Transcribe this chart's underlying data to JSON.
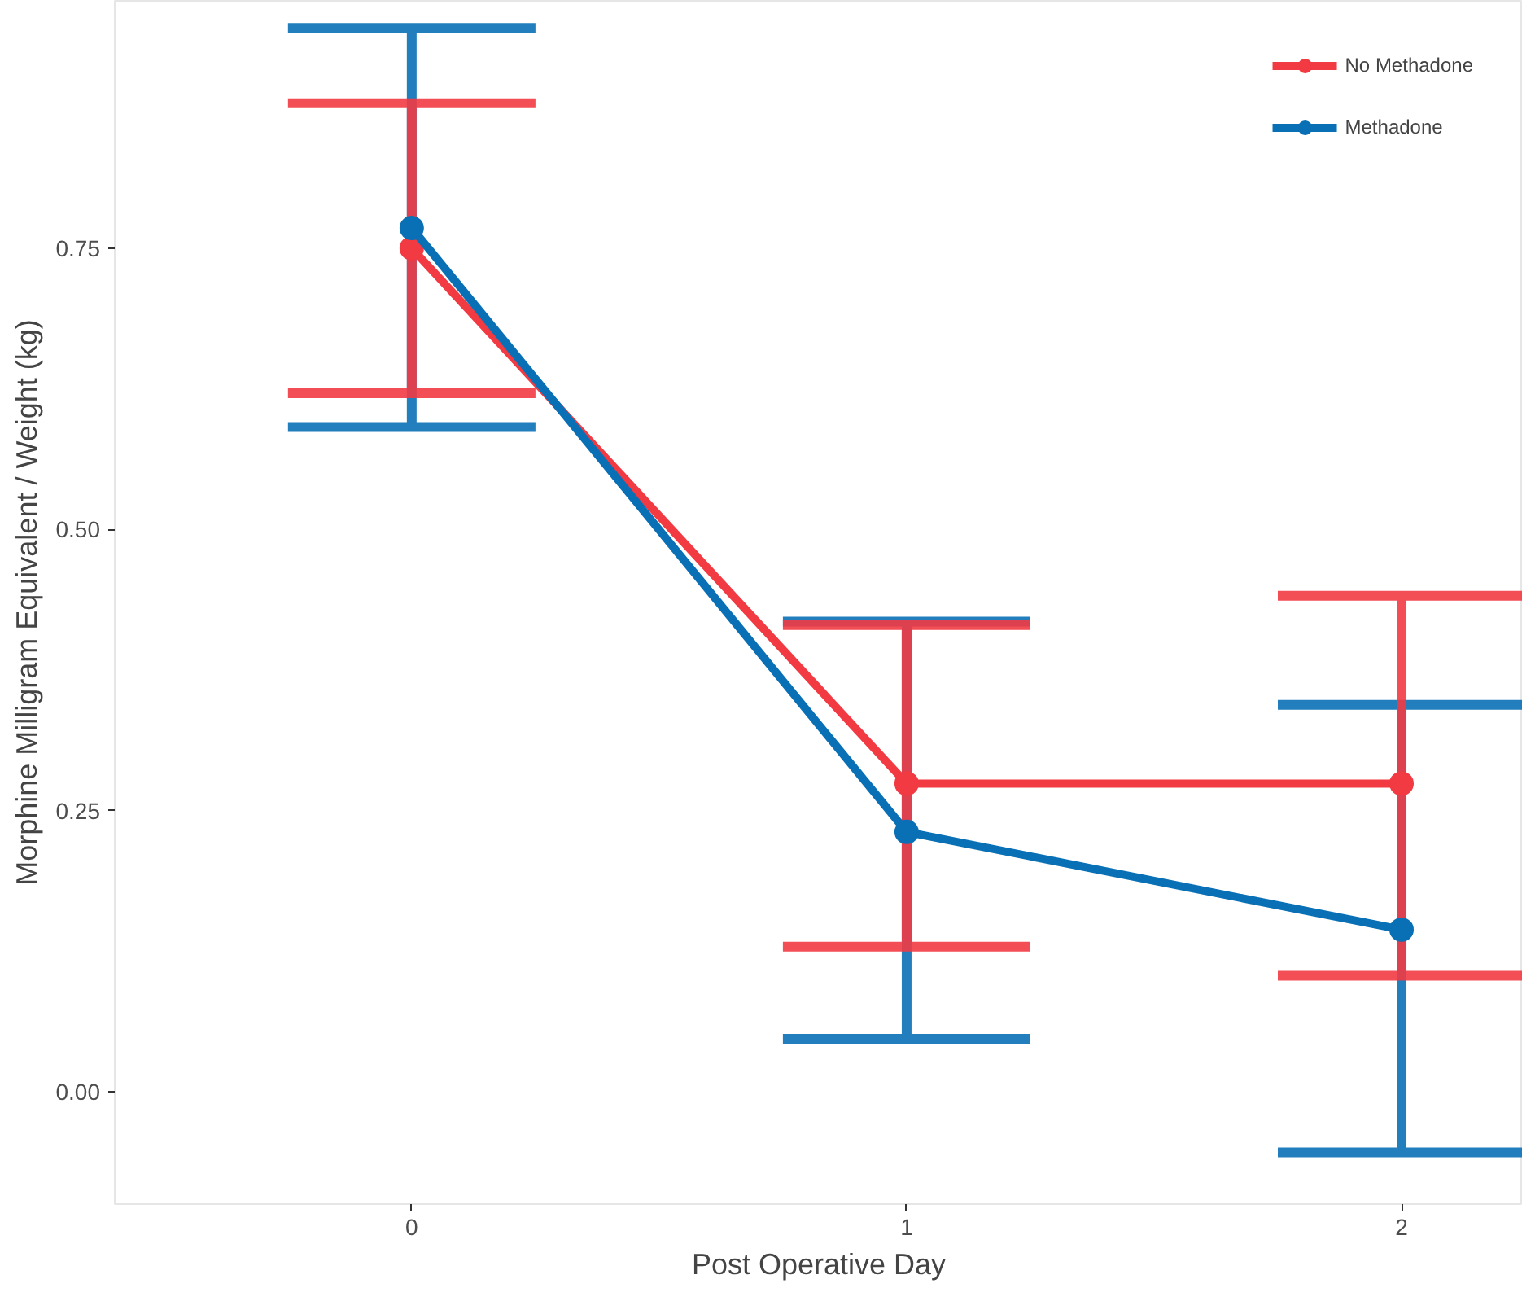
{
  "chart_data": {
    "type": "line",
    "xlabel": "Post Operative Day",
    "ylabel": "Morphine Milligram Equivalent / Weight (kg)",
    "x": [
      0,
      1,
      2
    ],
    "series": [
      {
        "name": "No Methadone",
        "color": "#f23a43",
        "values": [
          0.75,
          0.274,
          0.274
        ],
        "errors": [
          [
            0.621,
            0.879
          ],
          [
            0.129,
            0.415
          ],
          [
            0.103,
            0.441
          ]
        ]
      },
      {
        "name": "Methadone",
        "color": "#0a70b5",
        "values": [
          0.768,
          0.231,
          0.144
        ],
        "errors": [
          [
            0.591,
            0.946
          ],
          [
            0.047,
            0.418
          ],
          [
            -0.054,
            0.344
          ]
        ]
      }
    ],
    "xlim": [
      -0.6,
      2.245
    ],
    "ylim": [
      -0.1,
      0.97
    ],
    "xticks": [
      0,
      1,
      2
    ],
    "yticks": [
      {
        "value": 0,
        "label": "0.00"
      },
      {
        "value": 0.25,
        "label": "0.25"
      },
      {
        "value": 0.5,
        "label": "0.50"
      },
      {
        "value": 0.75,
        "label": "0.75"
      }
    ],
    "grid": false,
    "legend": "top right",
    "marker": "circle",
    "line_style": "solid"
  }
}
